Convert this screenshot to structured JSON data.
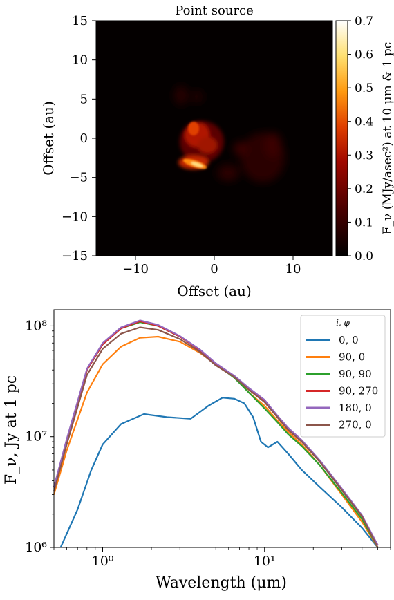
{
  "chart_data": [
    {
      "type": "heatmap",
      "title": "Point source",
      "xlabel": "Offset (au)",
      "ylabel": "Offset (au)",
      "xlim": [
        -15,
        15
      ],
      "ylim": [
        -15,
        15
      ],
      "xticks": [
        -10,
        0,
        10
      ],
      "yticks": [
        -15,
        -10,
        -5,
        0,
        5,
        10,
        15
      ],
      "colormap": "afmhot",
      "colorbar": {
        "label": "F_ν (MJy/asec²) at 10 μm & 1 pc",
        "range": [
          0,
          0.7
        ],
        "ticks": [
          "0.0",
          "0.1",
          "0.2",
          "0.3",
          "0.4",
          "0.5",
          "0.6",
          "0.7"
        ]
      },
      "features": [
        {
          "x": -2.0,
          "y": 1.0,
          "peak": 0.45
        },
        {
          "x": -1.5,
          "y": -3.5,
          "peak": 0.7
        },
        {
          "x": 6.0,
          "y": -3.0,
          "peak": 0.12
        },
        {
          "x": 3.0,
          "y": -1.0,
          "peak": 0.1
        }
      ]
    },
    {
      "type": "line",
      "xscale": "log",
      "yscale": "log",
      "xlim": [
        0.5,
        60
      ],
      "ylim": [
        1000000,
        140000000
      ],
      "xlabel": "Wavelength (μm)",
      "ylabel": "F_ν, Jy at 1 pc",
      "xtick_labels": [
        "10⁰",
        "10¹"
      ],
      "ytick_labels": [
        "10⁶",
        "10⁷",
        "10⁸"
      ],
      "legend": {
        "title": "i, φ",
        "position": "top-right"
      },
      "series": [
        {
          "name": "0, 0",
          "color": "#1f77b4",
          "x": [
            0.55,
            0.7,
            0.85,
            1.0,
            1.3,
            1.8,
            2.5,
            3.5,
            4.5,
            5.5,
            6.5,
            7.5,
            8.5,
            9.5,
            10.5,
            12,
            14,
            17,
            22,
            30,
            40,
            50
          ],
          "y": [
            1000000,
            2200000,
            5000000,
            8500000,
            13000000,
            16000000,
            15000000,
            14500000,
            19000000,
            22500000,
            22000000,
            20000000,
            15000000,
            9000000,
            8000000,
            9000000,
            7000000,
            5000000,
            3500000,
            2300000,
            1500000,
            1000000
          ]
        },
        {
          "name": "90, 0",
          "color": "#ff7f0e",
          "x": [
            0.5,
            0.6,
            0.8,
            1.0,
            1.3,
            1.7,
            2.2,
            3.0,
            4.0,
            5.0,
            6.5,
            8.0,
            10,
            12,
            14,
            17,
            22,
            30,
            40,
            50
          ],
          "y": [
            3000000,
            7500000,
            25000000,
            45000000,
            65000000,
            78000000,
            80000000,
            72000000,
            57000000,
            45000000,
            35000000,
            25000000,
            19000000,
            14000000,
            11000000,
            8500000,
            5500000,
            3000000,
            1700000,
            1000000
          ]
        },
        {
          "name": "90, 90",
          "color": "#2ca02c",
          "x": [
            0.5,
            0.6,
            0.8,
            1.0,
            1.3,
            1.7,
            2.2,
            3.0,
            4.0,
            5.0,
            6.5,
            8.0,
            10,
            12,
            14,
            17,
            22,
            30,
            40,
            50
          ],
          "y": [
            3500000,
            9000000,
            40000000,
            68000000,
            95000000,
            108000000,
            100000000,
            80000000,
            60000000,
            45000000,
            34000000,
            25000000,
            18000000,
            13500000,
            10500000,
            8200000,
            5500000,
            3100000,
            1800000,
            1000000
          ]
        },
        {
          "name": "90, 270",
          "color": "#d62728",
          "x": [
            0.5,
            0.6,
            0.8,
            1.0,
            1.3,
            1.7,
            2.2,
            3.0,
            4.0,
            5.0,
            6.5,
            8.0,
            10,
            12,
            14,
            17,
            22,
            30,
            40,
            50
          ],
          "y": [
            3500000,
            9000000,
            40000000,
            68000000,
            95000000,
            110000000,
            100000000,
            80000000,
            60000000,
            45000000,
            35000000,
            27000000,
            21000000,
            15000000,
            11500000,
            9000000,
            6000000,
            3300000,
            1900000,
            1050000
          ]
        },
        {
          "name": "180, 0",
          "color": "#9467bd",
          "x": [
            0.5,
            0.6,
            0.8,
            1.0,
            1.3,
            1.7,
            2.2,
            3.0,
            4.0,
            5.0,
            6.5,
            8.0,
            10,
            12,
            14,
            17,
            22,
            30,
            40,
            50
          ],
          "y": [
            3500000,
            9500000,
            41000000,
            70000000,
            97000000,
            112000000,
            102000000,
            81000000,
            61000000,
            46000000,
            35500000,
            27500000,
            21500000,
            15500000,
            12000000,
            9300000,
            6100000,
            3400000,
            1950000,
            1050000
          ]
        },
        {
          "name": "270, 0",
          "color": "#8c564b",
          "x": [
            0.5,
            0.6,
            0.8,
            1.0,
            1.3,
            1.7,
            2.2,
            3.0,
            4.0,
            5.0,
            6.5,
            8.0,
            10,
            12,
            14,
            17,
            22,
            30,
            40,
            50
          ],
          "y": [
            3200000,
            8500000,
            36000000,
            62000000,
            85000000,
            97000000,
            92000000,
            76000000,
            58000000,
            44000000,
            34500000,
            26500000,
            20500000,
            15000000,
            11500000,
            9000000,
            5900000,
            3300000,
            1900000,
            1000000
          ]
        }
      ]
    }
  ]
}
